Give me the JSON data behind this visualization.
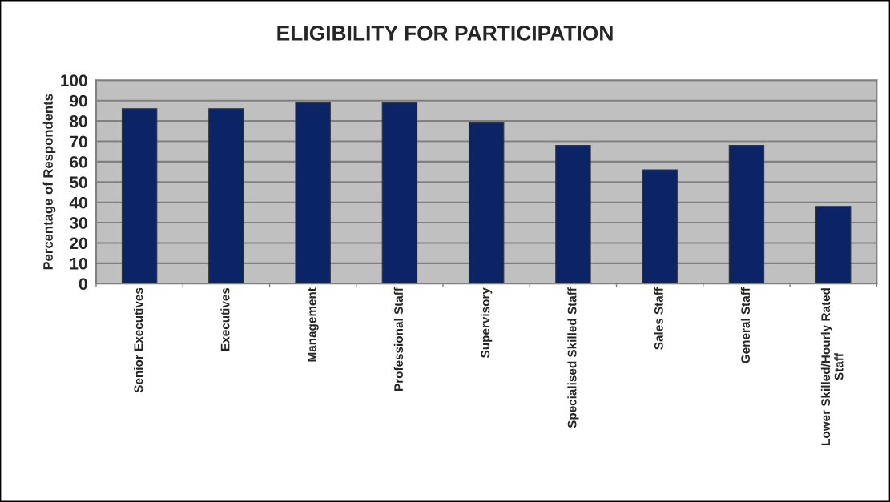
{
  "chart_data": {
    "type": "bar",
    "title": "ELIGIBILITY FOR PARTICIPATION",
    "ylabel": "Percentage of Respondents",
    "categories": [
      "Senior Executives",
      "Executives",
      "Management",
      "Professional Staff",
      "Supervisory",
      "Specialised Skilled Staff",
      "Sales Staff",
      "General Staff",
      "Lower Skilled/Hourly Rated\nStaff"
    ],
    "values": [
      86,
      86,
      89,
      89,
      79,
      68,
      56,
      68,
      38
    ],
    "color": "#0b2465",
    "ylim": [
      0,
      100
    ],
    "yticks": [
      0,
      10,
      20,
      30,
      40,
      50,
      60,
      70,
      80,
      90,
      100
    ],
    "grid": "y",
    "legend": false
  }
}
